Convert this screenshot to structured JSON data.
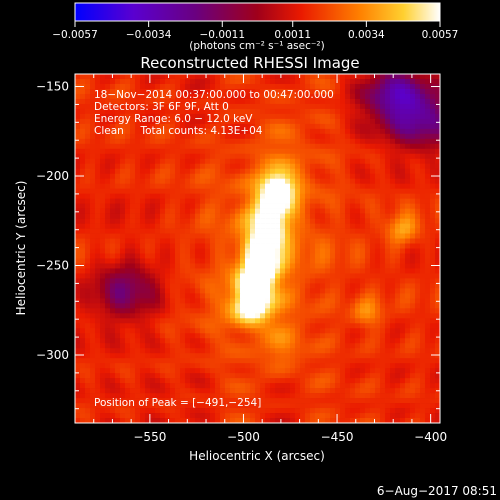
{
  "chart_data": {
    "type": "heatmap",
    "title": "Reconstructed RHESSI Image",
    "xlabel": "Heliocentric X (arcsec)",
    "ylabel": "Heliocentric Y (arcsec)",
    "xlim": [
      -590,
      -395
    ],
    "ylim": [
      -338,
      -143
    ],
    "x_ticks": [
      {
        "value": -550,
        "label": "−550"
      },
      {
        "value": -500,
        "label": "−500"
      },
      {
        "value": -450,
        "label": "−450"
      },
      {
        "value": -400,
        "label": "−400"
      }
    ],
    "y_ticks": [
      {
        "value": -150,
        "label": "−150"
      },
      {
        "value": -200,
        "label": "−200"
      },
      {
        "value": -250,
        "label": "−250"
      },
      {
        "value": -300,
        "label": "−300"
      }
    ],
    "colorbar": {
      "min": -0.0057,
      "max": 0.0057,
      "ticks": [
        {
          "value": -0.0057,
          "label": "−0.0057"
        },
        {
          "value": -0.0034,
          "label": "−0.0034"
        },
        {
          "value": -0.0011,
          "label": "−0.0011"
        },
        {
          "value": 0.0011,
          "label": "0.0011"
        },
        {
          "value": 0.0034,
          "label": "0.0034"
        },
        {
          "value": 0.0057,
          "label": "0.0057"
        }
      ],
      "unit_label": "(photons cm⁻² s⁻¹ asec⁻²)"
    },
    "annotations": [
      "18−Nov−2014 00:37:00.000 to 00:47:00.000",
      "Detectors: 3F 6F 9F, Att 0",
      "Energy Range: 6.0 − 12.0 keV",
      "Clean     Total counts: 4.13E+04"
    ],
    "peak_label": "Position of Peak = [−491,−254]",
    "peak": {
      "x": -491,
      "y": -254
    },
    "source": {
      "x_start": -496,
      "y_start": -272,
      "x_end": -482,
      "y_end": -208,
      "peak_value": 0.0057
    },
    "secondary_sources": [
      {
        "x": -415,
        "y": -230,
        "value": 0.003
      },
      {
        "x": -434,
        "y": -277,
        "value": 0.0024
      },
      {
        "x": -478,
        "y": -297,
        "value": 0.0017
      }
    ],
    "negative_sources": [
      {
        "x": -563,
        "y": -263,
        "value": -0.0012
      },
      {
        "x": -420,
        "y": -155,
        "value": -0.0022
      },
      {
        "x": -404,
        "y": -168,
        "value": -0.0017
      }
    ],
    "background_level": 0.0016,
    "grid": false
  },
  "footer": {
    "timestamp": "6−Aug−2017 08:51"
  }
}
